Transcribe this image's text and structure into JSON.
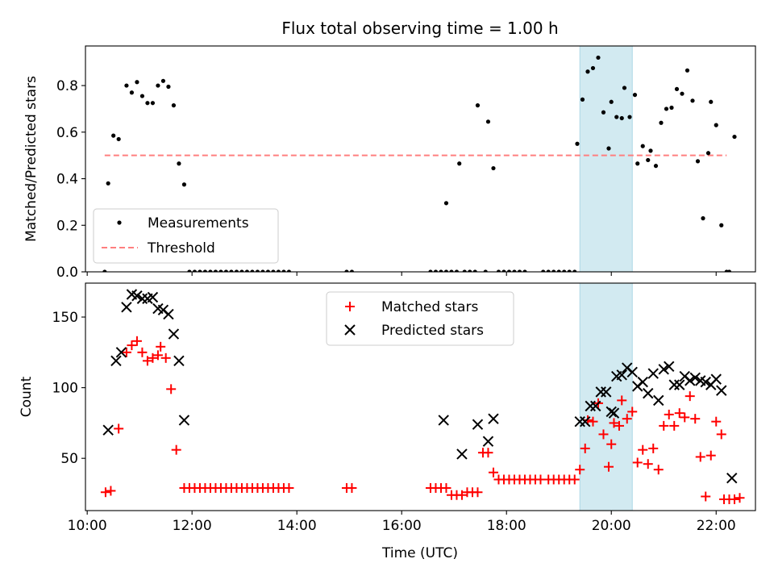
{
  "title": "Flux total observing time = 1.00 h",
  "colors": {
    "measurements": "#000000",
    "threshold": "#ff7f7f",
    "matched": "#ff0000",
    "predicted": "#000000",
    "span": "#add8e6"
  },
  "chart_data": [
    {
      "type": "scatter",
      "panel": "top",
      "ylabel": "Matched/Predicted stars",
      "xlabel": "",
      "xlim": [
        "09:58",
        "22:45"
      ],
      "ylim": [
        0,
        0.97
      ],
      "yticks": [
        0.0,
        0.2,
        0.4,
        0.6,
        0.8
      ],
      "legend": {
        "placement": "lower-left",
        "entries": [
          "Measurements",
          "Threshold"
        ]
      },
      "highlight_span": [
        "19:24",
        "20:24"
      ],
      "threshold": {
        "y": 0.5,
        "x": [
          "10:20",
          "22:12"
        ],
        "name": "Threshold"
      },
      "series": [
        {
          "name": "Measurements",
          "points": [
            [
              "10:20",
              0
            ],
            [
              "10:24",
              0.38
            ],
            [
              "10:30",
              0.585
            ],
            [
              "10:36",
              0.57
            ],
            [
              "10:45",
              0.8
            ],
            [
              "10:51",
              0.77
            ],
            [
              "10:57",
              0.815
            ],
            [
              "11:03",
              0.755
            ],
            [
              "11:09",
              0.725
            ],
            [
              "11:15",
              0.725
            ],
            [
              "11:21",
              0.8
            ],
            [
              "11:27",
              0.82
            ],
            [
              "11:33",
              0.795
            ],
            [
              "11:39",
              0.715
            ],
            [
              "11:45",
              0.465
            ],
            [
              "11:51",
              0.375
            ],
            [
              "11:57",
              0
            ],
            [
              "12:03",
              0
            ],
            [
              "12:09",
              0
            ],
            [
              "12:15",
              0
            ],
            [
              "12:21",
              0
            ],
            [
              "12:27",
              0
            ],
            [
              "12:33",
              0
            ],
            [
              "12:39",
              0
            ],
            [
              "12:45",
              0
            ],
            [
              "12:51",
              0
            ],
            [
              "12:57",
              0
            ],
            [
              "13:03",
              0
            ],
            [
              "13:09",
              0
            ],
            [
              "13:15",
              0
            ],
            [
              "13:21",
              0
            ],
            [
              "13:27",
              0
            ],
            [
              "13:33",
              0
            ],
            [
              "13:39",
              0
            ],
            [
              "13:45",
              0
            ],
            [
              "13:51",
              0
            ],
            [
              "14:57",
              0
            ],
            [
              "15:03",
              0
            ],
            [
              "16:33",
              0
            ],
            [
              "16:39",
              0
            ],
            [
              "16:45",
              0
            ],
            [
              "16:51",
              0
            ],
            [
              "16:51",
              0.295
            ],
            [
              "16:57",
              0
            ],
            [
              "17:03",
              0
            ],
            [
              "17:06",
              0.465
            ],
            [
              "17:12",
              0
            ],
            [
              "17:18",
              0
            ],
            [
              "17:24",
              0
            ],
            [
              "17:27",
              0.715
            ],
            [
              "17:36",
              0
            ],
            [
              "17:39",
              0.645
            ],
            [
              "17:45",
              0.445
            ],
            [
              "17:51",
              0
            ],
            [
              "17:57",
              0
            ],
            [
              "18:03",
              0
            ],
            [
              "18:09",
              0
            ],
            [
              "18:15",
              0
            ],
            [
              "18:21",
              0
            ],
            [
              "18:42",
              0
            ],
            [
              "18:48",
              0
            ],
            [
              "18:54",
              0
            ],
            [
              "19:00",
              0
            ],
            [
              "19:06",
              0
            ],
            [
              "19:12",
              0
            ],
            [
              "19:18",
              0
            ],
            [
              "19:21",
              0.55
            ],
            [
              "19:27",
              0.74
            ],
            [
              "19:33",
              0.86
            ],
            [
              "19:39",
              0.875
            ],
            [
              "19:45",
              0.92
            ],
            [
              "19:51",
              0.685
            ],
            [
              "19:57",
              0.53
            ],
            [
              "20:00",
              0.73
            ],
            [
              "20:06",
              0.665
            ],
            [
              "20:12",
              0.66
            ],
            [
              "20:15",
              0.79
            ],
            [
              "20:21",
              0.665
            ],
            [
              "20:27",
              0.76
            ],
            [
              "20:30",
              0.465
            ],
            [
              "20:36",
              0.54
            ],
            [
              "20:42",
              0.48
            ],
            [
              "20:45",
              0.52
            ],
            [
              "20:51",
              0.455
            ],
            [
              "20:57",
              0.64
            ],
            [
              "21:03",
              0.7
            ],
            [
              "21:09",
              0.705
            ],
            [
              "21:15",
              0.785
            ],
            [
              "21:21",
              0.765
            ],
            [
              "21:27",
              0.865
            ],
            [
              "21:33",
              0.735
            ],
            [
              "21:39",
              0.475
            ],
            [
              "21:45",
              0.23
            ],
            [
              "21:51",
              0.51
            ],
            [
              "21:54",
              0.73
            ],
            [
              "22:00",
              0.63
            ],
            [
              "22:06",
              0.2
            ],
            [
              "22:12",
              0
            ],
            [
              "22:15",
              0
            ],
            [
              "22:21",
              0.58
            ]
          ]
        }
      ]
    },
    {
      "type": "scatter",
      "panel": "bottom",
      "ylabel": "Count",
      "xlabel": "Time (UTC)",
      "xlim": [
        "09:58",
        "22:45"
      ],
      "ylim": [
        13,
        174
      ],
      "yticks": [
        50,
        100,
        150
      ],
      "xticks": [
        "10:00",
        "12:00",
        "14:00",
        "16:00",
        "18:00",
        "20:00",
        "22:00"
      ],
      "legend": {
        "placement": "upper-center",
        "entries": [
          "Matched stars",
          "Predicted stars"
        ]
      },
      "highlight_span": [
        "19:24",
        "20:24"
      ],
      "series": [
        {
          "name": "Matched stars",
          "marker": "plus",
          "points": [
            [
              "10:21",
              26
            ],
            [
              "10:27",
              27
            ],
            [
              "10:36",
              71
            ],
            [
              "10:45",
              125
            ],
            [
              "10:51",
              130
            ],
            [
              "10:57",
              133
            ],
            [
              "11:03",
              125
            ],
            [
              "11:09",
              119
            ],
            [
              "11:15",
              121
            ],
            [
              "11:21",
              123
            ],
            [
              "11:24",
              129
            ],
            [
              "11:30",
              121
            ],
            [
              "11:36",
              99
            ],
            [
              "11:42",
              56
            ],
            [
              "11:51",
              29
            ],
            [
              "11:57",
              29
            ],
            [
              "12:03",
              29
            ],
            [
              "12:09",
              29
            ],
            [
              "12:15",
              29
            ],
            [
              "12:21",
              29
            ],
            [
              "12:27",
              29
            ],
            [
              "12:33",
              29
            ],
            [
              "12:39",
              29
            ],
            [
              "12:45",
              29
            ],
            [
              "12:51",
              29
            ],
            [
              "12:57",
              29
            ],
            [
              "13:03",
              29
            ],
            [
              "13:09",
              29
            ],
            [
              "13:15",
              29
            ],
            [
              "13:21",
              29
            ],
            [
              "13:27",
              29
            ],
            [
              "13:33",
              29
            ],
            [
              "13:39",
              29
            ],
            [
              "13:45",
              29
            ],
            [
              "13:51",
              29
            ],
            [
              "14:57",
              29
            ],
            [
              "15:03",
              29
            ],
            [
              "16:33",
              29
            ],
            [
              "16:39",
              29
            ],
            [
              "16:45",
              29
            ],
            [
              "16:51",
              29
            ],
            [
              "16:57",
              24
            ],
            [
              "17:03",
              24
            ],
            [
              "17:09",
              24
            ],
            [
              "17:15",
              26
            ],
            [
              "17:21",
              26
            ],
            [
              "17:27",
              26
            ],
            [
              "17:33",
              54
            ],
            [
              "17:39",
              54
            ],
            [
              "17:45",
              40
            ],
            [
              "17:51",
              35
            ],
            [
              "17:57",
              35
            ],
            [
              "18:03",
              35
            ],
            [
              "18:09",
              35
            ],
            [
              "18:15",
              35
            ],
            [
              "18:21",
              35
            ],
            [
              "18:27",
              35
            ],
            [
              "18:33",
              35
            ],
            [
              "18:39",
              35
            ],
            [
              "18:48",
              35
            ],
            [
              "18:54",
              35
            ],
            [
              "19:00",
              35
            ],
            [
              "19:06",
              35
            ],
            [
              "19:12",
              35
            ],
            [
              "19:18",
              35
            ],
            [
              "19:24",
              42
            ],
            [
              "19:30",
              57
            ],
            [
              "19:33",
              77
            ],
            [
              "19:39",
              76
            ],
            [
              "19:45",
              89
            ],
            [
              "19:51",
              67
            ],
            [
              "19:57",
              44
            ],
            [
              "20:00",
              60
            ],
            [
              "20:03",
              75
            ],
            [
              "20:09",
              73
            ],
            [
              "20:12",
              91
            ],
            [
              "20:18",
              78
            ],
            [
              "20:24",
              83
            ],
            [
              "20:30",
              47
            ],
            [
              "20:36",
              56
            ],
            [
              "20:42",
              46
            ],
            [
              "20:48",
              57
            ],
            [
              "20:54",
              42
            ],
            [
              "21:00",
              73
            ],
            [
              "21:06",
              81
            ],
            [
              "21:12",
              73
            ],
            [
              "21:18",
              82
            ],
            [
              "21:24",
              79
            ],
            [
              "21:30",
              94
            ],
            [
              "21:36",
              78
            ],
            [
              "21:42",
              51
            ],
            [
              "21:48",
              23
            ],
            [
              "21:54",
              52
            ],
            [
              "22:00",
              76
            ],
            [
              "22:06",
              67
            ],
            [
              "22:09",
              21
            ],
            [
              "22:15",
              21
            ],
            [
              "22:21",
              21
            ],
            [
              "22:27",
              22
            ]
          ]
        },
        {
          "name": "Predicted stars",
          "marker": "x",
          "points": [
            [
              "10:24",
              70
            ],
            [
              "10:33",
              119
            ],
            [
              "10:39",
              125
            ],
            [
              "10:45",
              157
            ],
            [
              "10:51",
              166
            ],
            [
              "10:57",
              165
            ],
            [
              "11:03",
              163
            ],
            [
              "11:09",
              163
            ],
            [
              "11:15",
              164
            ],
            [
              "11:21",
              156
            ],
            [
              "11:27",
              155
            ],
            [
              "11:33",
              152
            ],
            [
              "11:39",
              138
            ],
            [
              "11:45",
              119
            ],
            [
              "11:51",
              77
            ],
            [
              "16:48",
              77
            ],
            [
              "17:09",
              53
            ],
            [
              "17:27",
              74
            ],
            [
              "17:39",
              62
            ],
            [
              "17:45",
              78
            ],
            [
              "19:24",
              76
            ],
            [
              "19:30",
              76
            ],
            [
              "19:36",
              87
            ],
            [
              "19:42",
              87
            ],
            [
              "19:48",
              97
            ],
            [
              "19:54",
              97
            ],
            [
              "20:00",
              83
            ],
            [
              "20:03",
              82
            ],
            [
              "20:06",
              108
            ],
            [
              "20:12",
              109
            ],
            [
              "20:18",
              114
            ],
            [
              "20:24",
              111
            ],
            [
              "20:30",
              101
            ],
            [
              "20:36",
              104
            ],
            [
              "20:42",
              96
            ],
            [
              "20:48",
              110
            ],
            [
              "20:54",
              91
            ],
            [
              "21:00",
              113
            ],
            [
              "21:06",
              115
            ],
            [
              "21:12",
              102
            ],
            [
              "21:18",
              102
            ],
            [
              "21:24",
              108
            ],
            [
              "21:30",
              105
            ],
            [
              "21:36",
              107
            ],
            [
              "21:42",
              105
            ],
            [
              "21:48",
              104
            ],
            [
              "21:54",
              102
            ],
            [
              "22:00",
              106
            ],
            [
              "22:06",
              98
            ],
            [
              "22:18",
              36
            ]
          ]
        }
      ]
    }
  ]
}
